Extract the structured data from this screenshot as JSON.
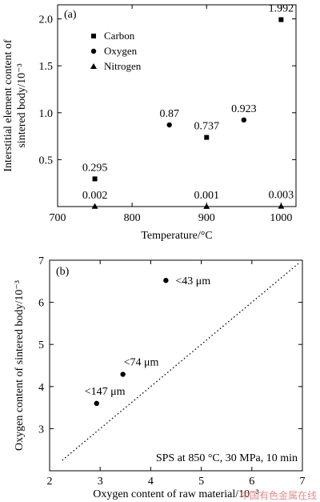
{
  "watermark": "中国有色金属在线",
  "chart_data": [
    {
      "type": "scatter",
      "panel_label": "(a)",
      "xlabel": "Temperature/°C",
      "ylabel_line1": "Interstitial element content of",
      "ylabel_line2": "sintered body/10⁻³",
      "xlim": [
        700,
        1020
      ],
      "ylim": [
        0,
        2.15
      ],
      "xticks": [
        700,
        800,
        900,
        1000
      ],
      "yticks": [
        0.5,
        1.0,
        1.5,
        2.0
      ],
      "xtick_labels": [
        "700",
        "800",
        "900",
        "1000"
      ],
      "ytick_labels": [
        "0.5",
        "1.0",
        "1.5",
        "2.0"
      ],
      "legend_position": "top-left",
      "series": [
        {
          "name": "Carbon",
          "marker": "square",
          "points": [
            {
              "x": 750,
              "y": 0.295,
              "label": "0.295"
            },
            {
              "x": 900,
              "y": 0.737,
              "label": "0.737"
            },
            {
              "x": 1000,
              "y": 1.992,
              "label": "1.992"
            }
          ]
        },
        {
          "name": "Oxygen",
          "marker": "circle",
          "points": [
            {
              "x": 850,
              "y": 0.87,
              "label": "0.87"
            },
            {
              "x": 950,
              "y": 0.923,
              "label": "0.923"
            }
          ]
        },
        {
          "name": "Nitrogen",
          "marker": "triangle",
          "points": [
            {
              "x": 750,
              "y": 0.002,
              "label": "0.002"
            },
            {
              "x": 900,
              "y": 0.001,
              "label": "0.001"
            },
            {
              "x": 1000,
              "y": 0.003,
              "label": "0.003"
            }
          ]
        }
      ]
    },
    {
      "type": "scatter",
      "panel_label": "(b)",
      "xlabel": "Oxygen content of raw material/10⁻³",
      "ylabel": "Oxygen content of sintered body/10⁻³",
      "xlim": [
        2,
        7
      ],
      "ylim": [
        2,
        7
      ],
      "xticks": [
        2,
        3,
        4,
        5,
        6,
        7
      ],
      "yticks": [
        3,
        4,
        5,
        6,
        7
      ],
      "xtick_labels": [
        "2",
        "3",
        "4",
        "5",
        "6",
        "7"
      ],
      "ytick_labels": [
        "3",
        "4",
        "5",
        "6",
        "7"
      ],
      "annotation": "SPS at 850 °C, 30 MPa, 10 min",
      "reference_line": "y = x (dotted)",
      "series": [
        {
          "marker": "circle",
          "points": [
            {
              "x": 2.93,
              "y": 3.6,
              "label": "<147 μm"
            },
            {
              "x": 3.45,
              "y": 4.29,
              "label": "<74 μm"
            },
            {
              "x": 4.3,
              "y": 6.52,
              "label": "<43 μm"
            }
          ]
        }
      ]
    }
  ]
}
